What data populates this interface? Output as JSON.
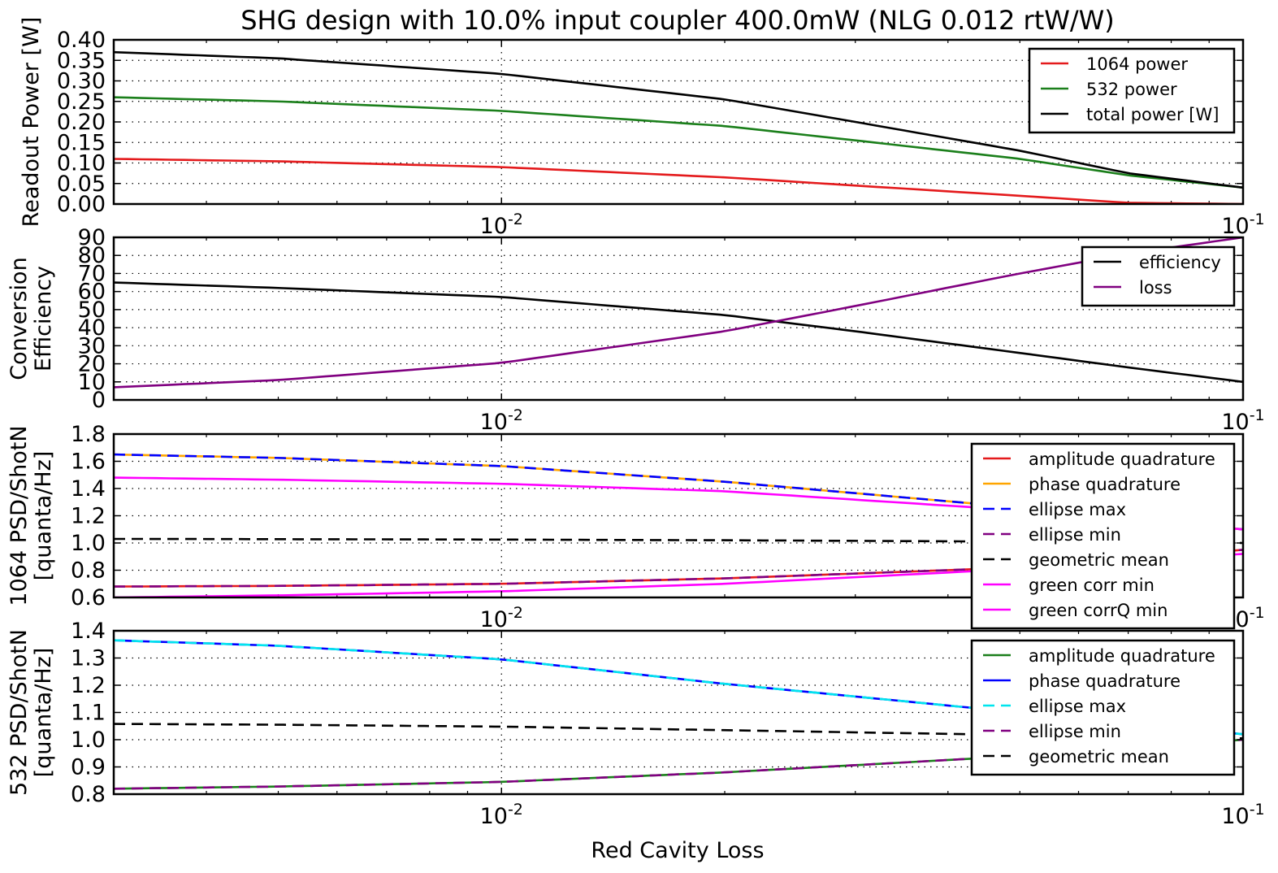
{
  "figure_title": "SHG design with 10.0% input coupler 400.0mW (NLG 0.012 rtW/W)",
  "x_axis_label": "Red Cavity Loss",
  "chart_data": [
    {
      "type": "line",
      "xscale": "log",
      "xlim": [
        0.003,
        0.1
      ],
      "ylim": [
        0,
        0.4
      ],
      "xticks": [
        0.01,
        0.1
      ],
      "xtick_labels": [
        {
          "base": "10",
          "exp": "-2"
        },
        {
          "base": "10",
          "exp": "-1"
        }
      ],
      "yticks": [
        0.0,
        0.05,
        0.1,
        0.15,
        0.2,
        0.25,
        0.3,
        0.35,
        0.4
      ],
      "ytick_labels": [
        "0.00",
        "0.05",
        "0.10",
        "0.15",
        "0.20",
        "0.25",
        "0.30",
        "0.35",
        "0.40"
      ],
      "ylabel": [
        "Readout Power [W]"
      ],
      "grid": true,
      "legend_position": "upper-right",
      "series": [
        {
          "name": "1064 power",
          "color": "#e41a1c",
          "dash": "solid",
          "x": [
            0.003,
            0.005,
            0.01,
            0.02,
            0.03,
            0.05,
            0.07,
            0.1
          ],
          "y": [
            0.11,
            0.104,
            0.09,
            0.065,
            0.045,
            0.02,
            0.003,
            0.0
          ]
        },
        {
          "name": "532 power",
          "color": "#1b7f1b",
          "dash": "solid",
          "x": [
            0.003,
            0.005,
            0.01,
            0.02,
            0.03,
            0.05,
            0.07,
            0.1
          ],
          "y": [
            0.26,
            0.25,
            0.227,
            0.19,
            0.155,
            0.11,
            0.07,
            0.04
          ]
        },
        {
          "name": "total power [W]",
          "color": "#000000",
          "dash": "solid",
          "x": [
            0.003,
            0.005,
            0.01,
            0.02,
            0.03,
            0.05,
            0.07,
            0.1
          ],
          "y": [
            0.37,
            0.355,
            0.317,
            0.255,
            0.2,
            0.13,
            0.075,
            0.04
          ]
        }
      ]
    },
    {
      "type": "line",
      "xscale": "log",
      "xlim": [
        0.003,
        0.1
      ],
      "ylim": [
        0,
        90
      ],
      "xticks": [
        0.01,
        0.1
      ],
      "xtick_labels": [
        {
          "base": "10",
          "exp": "-2"
        },
        {
          "base": "10",
          "exp": "-1"
        }
      ],
      "yticks": [
        0,
        10,
        20,
        30,
        40,
        50,
        60,
        70,
        80,
        90
      ],
      "ytick_labels": [
        "0",
        "10",
        "20",
        "30",
        "40",
        "50",
        "60",
        "70",
        "80",
        "90"
      ],
      "ylabel": [
        "Conversion",
        "Efficiency"
      ],
      "grid": true,
      "legend_position": "upper-right",
      "series": [
        {
          "name": "efficiency",
          "color": "#000000",
          "dash": "solid",
          "x": [
            0.003,
            0.005,
            0.01,
            0.02,
            0.03,
            0.05,
            0.07,
            0.1
          ],
          "y": [
            65,
            62,
            57,
            47,
            38,
            26,
            18,
            10
          ]
        },
        {
          "name": "loss",
          "color": "#800080",
          "dash": "solid",
          "x": [
            0.003,
            0.005,
            0.01,
            0.02,
            0.03,
            0.05,
            0.07,
            0.1
          ],
          "y": [
            7,
            11,
            20.5,
            38,
            52,
            70,
            81,
            90
          ]
        }
      ]
    },
    {
      "type": "line",
      "xscale": "log",
      "xlim": [
        0.003,
        0.1
      ],
      "ylim": [
        0.6,
        1.8
      ],
      "xticks": [
        0.01,
        0.1
      ],
      "xtick_labels": [
        {
          "base": "10",
          "exp": "-2"
        },
        {
          "base": "10",
          "exp": "-1"
        }
      ],
      "yticks": [
        0.6,
        0.8,
        1.0,
        1.2,
        1.4,
        1.6,
        1.8
      ],
      "ytick_labels": [
        "0.6",
        "0.8",
        "1.0",
        "1.2",
        "1.4",
        "1.6",
        "1.8"
      ],
      "ylabel": [
        "1064 PSD/ShotN",
        "[quanta/Hz]"
      ],
      "grid": true,
      "legend_position": "upper-right",
      "series": [
        {
          "name": "amplitude quadrature",
          "color": "#e41a1c",
          "dash": "solid",
          "x": [
            0.003,
            0.005,
            0.01,
            0.02,
            0.05,
            0.1
          ],
          "y": [
            0.68,
            0.685,
            0.7,
            0.74,
            0.82,
            0.95
          ]
        },
        {
          "name": "phase quadrature",
          "color": "#ffa500",
          "dash": "solid",
          "x": [
            0.003,
            0.005,
            0.01,
            0.02,
            0.05,
            0.1
          ],
          "y": [
            1.65,
            1.625,
            1.565,
            1.45,
            1.26,
            1.1
          ]
        },
        {
          "name": "ellipse max",
          "color": "#0000ff",
          "dash": "dashed",
          "x": [
            0.003,
            0.005,
            0.01,
            0.02,
            0.05,
            0.1
          ],
          "y": [
            1.65,
            1.625,
            1.565,
            1.45,
            1.26,
            1.1
          ]
        },
        {
          "name": "ellipse min",
          "color": "#800080",
          "dash": "dashed",
          "x": [
            0.003,
            0.005,
            0.01,
            0.02,
            0.05,
            0.1
          ],
          "y": [
            0.68,
            0.685,
            0.7,
            0.74,
            0.82,
            0.95
          ]
        },
        {
          "name": "geometric mean",
          "color": "#000000",
          "dash": "dashed",
          "x": [
            0.003,
            0.005,
            0.01,
            0.02,
            0.05,
            0.1
          ],
          "y": [
            1.03,
            1.028,
            1.025,
            1.02,
            1.01,
            1.0
          ]
        },
        {
          "name": "green corr min",
          "color": "#ff00ff",
          "dash": "solid",
          "x": [
            0.003,
            0.005,
            0.01,
            0.02,
            0.05,
            0.1
          ],
          "y": [
            1.48,
            1.465,
            1.435,
            1.38,
            1.24,
            1.1
          ]
        },
        {
          "name": "green corrQ min",
          "color": "#ff00ff",
          "dash": "solid",
          "x": [
            0.003,
            0.005,
            0.01,
            0.02,
            0.05,
            0.1
          ],
          "y": [
            0.6,
            0.615,
            0.645,
            0.7,
            0.81,
            0.92
          ]
        }
      ]
    },
    {
      "type": "line",
      "xscale": "log",
      "xlim": [
        0.003,
        0.1
      ],
      "ylim": [
        0.8,
        1.4
      ],
      "xticks": [
        0.01,
        0.1
      ],
      "xtick_labels": [
        {
          "base": "10",
          "exp": "-2"
        },
        {
          "base": "10",
          "exp": "-1"
        }
      ],
      "yticks": [
        0.8,
        0.9,
        1.0,
        1.1,
        1.2,
        1.3,
        1.4
      ],
      "ytick_labels": [
        "0.8",
        "0.9",
        "1.0",
        "1.1",
        "1.2",
        "1.3",
        "1.4"
      ],
      "ylabel": [
        "532  PSD/ShotN",
        "[quanta/Hz]"
      ],
      "grid": true,
      "legend_position": "upper-right",
      "series": [
        {
          "name": "amplitude quadrature",
          "color": "#1b7f1b",
          "dash": "solid",
          "x": [
            0.003,
            0.005,
            0.01,
            0.02,
            0.05,
            0.1
          ],
          "y": [
            0.82,
            0.828,
            0.845,
            0.88,
            0.94,
            1.0
          ]
        },
        {
          "name": "phase quadrature",
          "color": "#0000ff",
          "dash": "solid",
          "x": [
            0.003,
            0.005,
            0.01,
            0.02,
            0.05,
            0.1
          ],
          "y": [
            1.365,
            1.345,
            1.295,
            1.205,
            1.1,
            1.02
          ]
        },
        {
          "name": "ellipse max",
          "color": "#00e5ee",
          "dash": "dashed",
          "x": [
            0.003,
            0.005,
            0.01,
            0.02,
            0.05,
            0.1
          ],
          "y": [
            1.365,
            1.345,
            1.295,
            1.205,
            1.1,
            1.02
          ]
        },
        {
          "name": "ellipse min",
          "color": "#800080",
          "dash": "dashed",
          "x": [
            0.003,
            0.005,
            0.01,
            0.02,
            0.05,
            0.1
          ],
          "y": [
            0.82,
            0.828,
            0.845,
            0.88,
            0.94,
            1.0
          ]
        },
        {
          "name": "geometric mean",
          "color": "#000000",
          "dash": "dashed",
          "x": [
            0.003,
            0.005,
            0.01,
            0.02,
            0.05,
            0.1
          ],
          "y": [
            1.058,
            1.055,
            1.048,
            1.035,
            1.017,
            1.005
          ]
        }
      ]
    }
  ]
}
